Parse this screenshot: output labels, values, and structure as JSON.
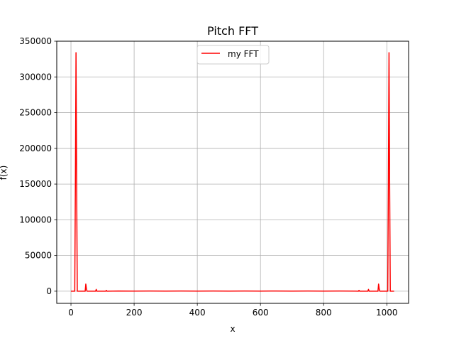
{
  "chart_data": {
    "type": "line",
    "title": "Pitch FFT",
    "xlabel": "x",
    "ylabel": "f(x)",
    "xlim": [
      -45,
      1069
    ],
    "ylim": [
      -17000,
      350000
    ],
    "grid": true,
    "legend_position": "top-center",
    "x_ticks": [
      0,
      200,
      400,
      600,
      800,
      1000
    ],
    "y_ticks": [
      0,
      50000,
      100000,
      150000,
      200000,
      250000,
      300000,
      350000
    ],
    "x_tick_labels": [
      "0",
      "200",
      "400",
      "600",
      "800",
      "1000"
    ],
    "y_tick_labels": [
      "0",
      "50000",
      "100000",
      "150000",
      "200000",
      "250000",
      "300000",
      "350000"
    ],
    "series": [
      {
        "name": "my FFT",
        "color": "#ff0000",
        "x": [
          0,
          12,
          14,
          16,
          18,
          20,
          45,
          47,
          49,
          51,
          78,
          80,
          82,
          110,
          112,
          114,
          150,
          200,
          250,
          300,
          350,
          400,
          450,
          500,
          550,
          600,
          650,
          700,
          750,
          800,
          850,
          900,
          910,
          912,
          914,
          940,
          942,
          944,
          946,
          972,
          974,
          976,
          978,
          1003,
          1005,
          1007,
          1009,
          1011,
          1023
        ],
        "y": [
          0,
          0,
          150000,
          334000,
          150000,
          0,
          0,
          10000,
          3000,
          0,
          0,
          2500,
          0,
          0,
          1200,
          0,
          300,
          200,
          300,
          200,
          300,
          200,
          300,
          200,
          300,
          200,
          300,
          200,
          300,
          200,
          300,
          200,
          0,
          1200,
          0,
          0,
          2500,
          0,
          0,
          0,
          10000,
          3000,
          0,
          0,
          150000,
          334000,
          150000,
          0,
          0
        ]
      }
    ]
  }
}
